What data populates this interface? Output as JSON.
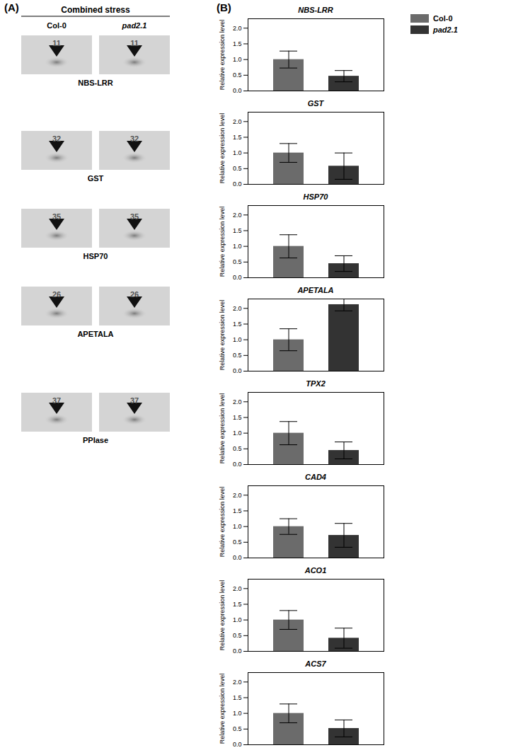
{
  "panel_labels": [
    "(A)",
    "(B)"
  ],
  "gel": {
    "title": "Combined stress",
    "columns": [
      "Col-0",
      "pad2.1"
    ],
    "spots": [
      {
        "number": "11",
        "label": "NBS-LRR"
      },
      {
        "number": "32",
        "label": "GST"
      },
      {
        "number": "35",
        "label": "HSP70"
      },
      {
        "number": "26",
        "label": "APETALA"
      },
      {
        "number": "37",
        "label": "PPIase"
      }
    ]
  },
  "chart_data": [
    {
      "type": "bar",
      "title": "NBS-LRR",
      "y_label": "Relative expression level",
      "legend": "top right",
      "tick_labels": "y",
      "ylim": [
        0,
        2.3
      ],
      "yticks": [
        {
          "value": 0,
          "label": "0.0"
        },
        {
          "value": 0.5,
          "label": "0.5"
        },
        {
          "value": 1,
          "label": "1.0"
        },
        {
          "value": 1.5,
          "label": "1.5"
        },
        {
          "value": 2,
          "label": "2.0"
        }
      ],
      "series": [
        {
          "name": "Col-0",
          "color": "#6b6b6b",
          "values": [
            1.0
          ],
          "errors": [
            0.27
          ]
        },
        {
          "name": "pad2.1",
          "color": "#333333",
          "values": [
            0.47
          ],
          "errors": [
            0.18
          ]
        }
      ]
    },
    {
      "type": "bar",
      "title": "GST",
      "y_label": "Relative expression level",
      "tick_labels": "y",
      "ylim": [
        0,
        2.3
      ],
      "yticks": [
        {
          "value": 0,
          "label": "0.0"
        },
        {
          "value": 0.5,
          "label": "0.5"
        },
        {
          "value": 1,
          "label": "1.0"
        },
        {
          "value": 1.5,
          "label": "1.5"
        },
        {
          "value": 2,
          "label": "2.0"
        }
      ],
      "series": [
        {
          "name": "Col-0",
          "color": "#6b6b6b",
          "values": [
            1.0
          ],
          "errors": [
            0.3
          ]
        },
        {
          "name": "pad2.1",
          "color": "#333333",
          "values": [
            0.58
          ],
          "errors": [
            0.42
          ]
        }
      ]
    },
    {
      "type": "bar",
      "title": "HSP70",
      "y_label": "Relative expression level",
      "tick_labels": "y",
      "ylim": [
        0,
        2.3
      ],
      "yticks": [
        {
          "value": 0,
          "label": "0.0"
        },
        {
          "value": 0.5,
          "label": "0.5"
        },
        {
          "value": 1,
          "label": "1.0"
        },
        {
          "value": 1.5,
          "label": "1.5"
        },
        {
          "value": 2,
          "label": "2.0"
        }
      ],
      "series": [
        {
          "name": "Col-0",
          "color": "#6b6b6b",
          "values": [
            1.0
          ],
          "errors": [
            0.37
          ]
        },
        {
          "name": "pad2.1",
          "color": "#333333",
          "values": [
            0.45
          ],
          "errors": [
            0.25
          ]
        }
      ]
    },
    {
      "type": "bar",
      "title": "APETALA",
      "y_label": "Relative expression level",
      "tick_labels": "y",
      "ylim": [
        0,
        2.3
      ],
      "yticks": [
        {
          "value": 0,
          "label": "0.0"
        },
        {
          "value": 0.5,
          "label": "0.5"
        },
        {
          "value": 1,
          "label": "1.0"
        },
        {
          "value": 1.5,
          "label": "1.5"
        },
        {
          "value": 2,
          "label": "2.0"
        }
      ],
      "series": [
        {
          "name": "Col-0",
          "color": "#6b6b6b",
          "values": [
            1.0
          ],
          "errors": [
            0.35
          ]
        },
        {
          "name": "pad2.1",
          "color": "#333333",
          "values": [
            2.12
          ],
          "errors": [
            0.2
          ]
        }
      ]
    },
    {
      "type": "bar",
      "title": "TPX2",
      "y_label": "Relative expression level",
      "tick_labels": "y",
      "ylim": [
        0,
        2.3
      ],
      "yticks": [
        {
          "value": 0,
          "label": "0.0"
        },
        {
          "value": 0.5,
          "label": "0.5"
        },
        {
          "value": 1,
          "label": "1.0"
        },
        {
          "value": 1.5,
          "label": "1.5"
        },
        {
          "value": 2,
          "label": "2.0"
        }
      ],
      "series": [
        {
          "name": "Col-0",
          "color": "#6b6b6b",
          "values": [
            1.0
          ],
          "errors": [
            0.37
          ]
        },
        {
          "name": "pad2.1",
          "color": "#333333",
          "values": [
            0.45
          ],
          "errors": [
            0.27
          ]
        }
      ]
    },
    {
      "type": "bar",
      "title": "CAD4",
      "y_label": "Relative expression level",
      "tick_labels": "y",
      "ylim": [
        0,
        2.3
      ],
      "yticks": [
        {
          "value": 0,
          "label": "0.0"
        },
        {
          "value": 0.5,
          "label": "0.5"
        },
        {
          "value": 1,
          "label": "1.0"
        },
        {
          "value": 1.5,
          "label": "1.5"
        },
        {
          "value": 2,
          "label": "2.0"
        }
      ],
      "series": [
        {
          "name": "Col-0",
          "color": "#6b6b6b",
          "values": [
            1.0
          ],
          "errors": [
            0.25
          ]
        },
        {
          "name": "pad2.1",
          "color": "#333333",
          "values": [
            0.72
          ],
          "errors": [
            0.38
          ]
        }
      ]
    },
    {
      "type": "bar",
      "title": "ACO1",
      "y_label": "Relative expression level",
      "tick_labels": "y",
      "ylim": [
        0,
        2.3
      ],
      "yticks": [
        {
          "value": 0,
          "label": "0.0"
        },
        {
          "value": 0.5,
          "label": "0.5"
        },
        {
          "value": 1,
          "label": "1.0"
        },
        {
          "value": 1.5,
          "label": "1.5"
        },
        {
          "value": 2,
          "label": "2.0"
        }
      ],
      "series": [
        {
          "name": "Col-0",
          "color": "#6b6b6b",
          "values": [
            1.0
          ],
          "errors": [
            0.3
          ]
        },
        {
          "name": "pad2.1",
          "color": "#333333",
          "values": [
            0.42
          ],
          "errors": [
            0.32
          ]
        }
      ]
    },
    {
      "type": "bar",
      "title": "ACS7",
      "y_label": "Relative expression level",
      "tick_labels": "y",
      "ylim": [
        0,
        2.3
      ],
      "yticks": [
        {
          "value": 0,
          "label": "0.0"
        },
        {
          "value": 0.5,
          "label": "0.5"
        },
        {
          "value": 1,
          "label": "1.0"
        },
        {
          "value": 1.5,
          "label": "1.5"
        },
        {
          "value": 2,
          "label": "2.0"
        }
      ],
      "series": [
        {
          "name": "Col-0",
          "color": "#6b6b6b",
          "values": [
            1.0
          ],
          "errors": [
            0.3
          ]
        },
        {
          "name": "pad2.1",
          "color": "#333333",
          "values": [
            0.52
          ],
          "errors": [
            0.27
          ]
        }
      ]
    }
  ]
}
